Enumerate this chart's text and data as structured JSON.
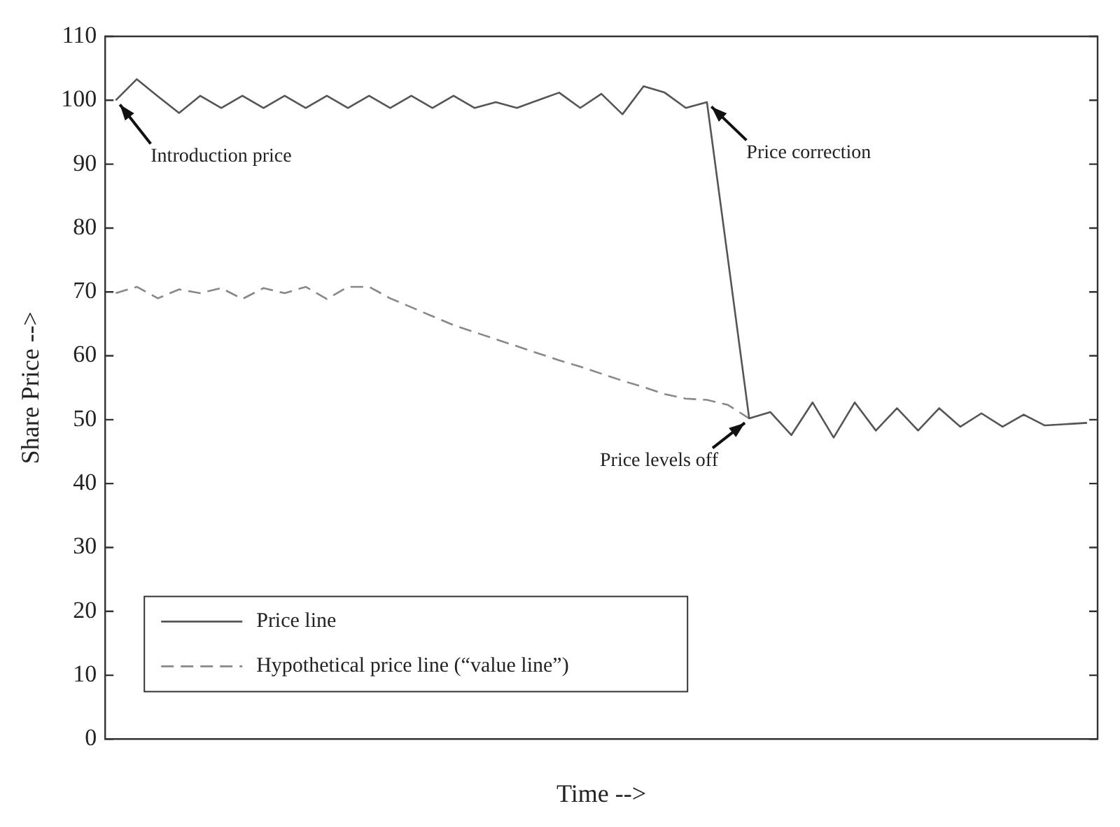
{
  "chart_data": {
    "type": "line",
    "xlabel": "Time -->",
    "ylabel": "Share Price -->",
    "categories": [
      null,
      null,
      null,
      null,
      null,
      null,
      null,
      null,
      null,
      null,
      null,
      null,
      null,
      null,
      null,
      null,
      null,
      null,
      null,
      null,
      null,
      null,
      null,
      null,
      null,
      null,
      null,
      null,
      null,
      null,
      null,
      null,
      null,
      null,
      null,
      null,
      null,
      null,
      null,
      null,
      null,
      null,
      null,
      null,
      null,
      null,
      null
    ],
    "ylim": [
      0,
      110
    ],
    "yticks": [
      0,
      10,
      20,
      30,
      40,
      50,
      60,
      70,
      80,
      90,
      100,
      110
    ],
    "grid": false,
    "legend": "bottom left",
    "marker": "none",
    "series": [
      {
        "name": "Price line",
        "color": "#555555",
        "line_style": "solid",
        "values": [
          100,
          103.3,
          100.6,
          98,
          100.7,
          98.8,
          100.7,
          98.8,
          100.7,
          98.8,
          100.7,
          98.8,
          100.7,
          98.8,
          100.7,
          98.8,
          100.7,
          98.8,
          99.7,
          98.8,
          100,
          101.2,
          98.8,
          101,
          97.8,
          102.2,
          101.2,
          98.8,
          99.7,
          75,
          50.2,
          51.2,
          47.6,
          52.7,
          47.2,
          52.7,
          48.3,
          51.8,
          48.3,
          51.8,
          48.9,
          51,
          48.9,
          50.8,
          49.1,
          49.3,
          49.5
        ]
      },
      {
        "name": "Hypothetical price line (“value line”)",
        "color": "#888888",
        "line_style": "dashed",
        "values": [
          69.8,
          70.8,
          69,
          70.4,
          69.8,
          70.6,
          68.9,
          70.6,
          69.8,
          70.8,
          68.9,
          70.8,
          70.8,
          69,
          67.6,
          66.2,
          64.8,
          63.7,
          62.6,
          61.5,
          60.4,
          59.3,
          58.3,
          57.2,
          56.1,
          55.1,
          54,
          53.3,
          53.1,
          52.3,
          50.2,
          null,
          null,
          null,
          null,
          null,
          null,
          null,
          null,
          null,
          null,
          null,
          null,
          null,
          null,
          null,
          null
        ]
      }
    ],
    "annotations": [
      "Introduction price",
      "Price correction",
      "Price levels off"
    ]
  }
}
